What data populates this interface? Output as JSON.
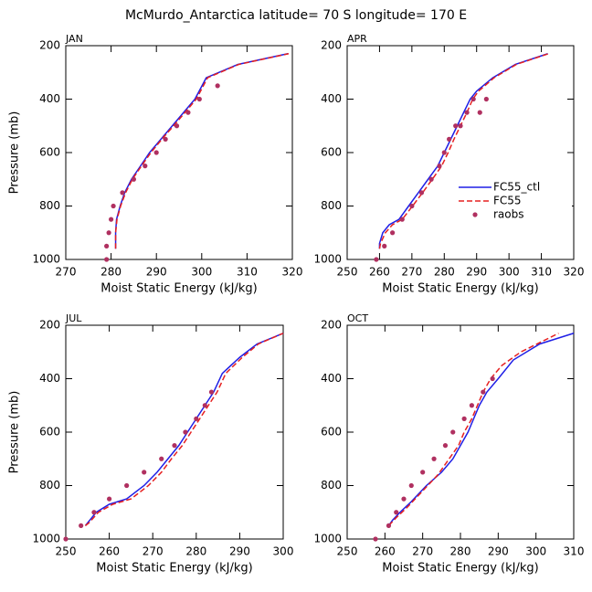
{
  "title": "McMurdo_Antarctica  latitude= 70 S longitude= 170 E",
  "chart_data": [
    {
      "type": "line",
      "title": "JAN",
      "xlabel": "Moist Static Energy (kJ/kg)",
      "ylabel": "Pressure (mb)",
      "xlim": [
        270,
        320
      ],
      "xticks": [
        270,
        280,
        290,
        300,
        310,
        320
      ],
      "ylim": [
        200,
        1000
      ],
      "yticks": [
        200,
        400,
        600,
        800,
        1000
      ],
      "y_inverted": true,
      "legend": false,
      "series": [
        {
          "name": "FC55_ctl",
          "color": "#1f1fe6",
          "style": "solid",
          "x": [
            281,
            281,
            281.2,
            282,
            283,
            284.5,
            286.5,
            288.5,
            291,
            293.5,
            296,
            298.5,
            301,
            308,
            319
          ],
          "y": [
            960,
            900,
            850,
            800,
            750,
            700,
            650,
            600,
            550,
            500,
            450,
            400,
            320,
            270,
            230
          ]
        },
        {
          "name": "FC55",
          "color": "#e62020",
          "style": "dashed",
          "x": [
            281,
            281,
            281.3,
            282.1,
            283.2,
            284.7,
            286.7,
            288.8,
            291.2,
            293.8,
            296.3,
            298.8,
            301.3,
            308.2,
            319.2
          ],
          "y": [
            960,
            900,
            850,
            800,
            750,
            700,
            650,
            600,
            550,
            500,
            450,
            400,
            320,
            270,
            230
          ]
        },
        {
          "name": "raobs",
          "color": "#b03060",
          "style": "markers",
          "x": [
            279,
            279,
            279.5,
            280,
            280.5,
            282.5,
            285,
            287.5,
            290,
            292,
            294.5,
            297,
            299.5,
            303.5
          ],
          "y": [
            1000,
            950,
            900,
            850,
            800,
            750,
            700,
            650,
            600,
            550,
            500,
            450,
            400,
            350
          ]
        }
      ]
    },
    {
      "type": "line",
      "title": "APR",
      "xlabel": "Moist Static Energy (kJ/kg)",
      "xlim": [
        250,
        320
      ],
      "xticks": [
        250,
        260,
        270,
        280,
        290,
        300,
        310,
        320
      ],
      "ylim": [
        200,
        1000
      ],
      "yticks": [
        200,
        400,
        600,
        800,
        1000
      ],
      "y_inverted": true,
      "legend": true,
      "legend_position": "center right",
      "series": [
        {
          "name": "FC55_ctl",
          "color": "#1f1fe6",
          "style": "solid",
          "x": [
            260,
            260,
            261,
            263,
            266,
            269,
            272,
            275,
            278,
            280,
            282,
            284,
            286,
            288,
            290,
            295,
            302,
            312
          ],
          "y": [
            960,
            940,
            900,
            870,
            850,
            800,
            750,
            700,
            650,
            600,
            550,
            500,
            450,
            400,
            370,
            320,
            270,
            230
          ]
        },
        {
          "name": "FC55",
          "color": "#e62020",
          "style": "dashed",
          "x": [
            260,
            260.3,
            261.8,
            264,
            267,
            270.2,
            273.3,
            276.3,
            279.2,
            281.2,
            283,
            285,
            287,
            288.8,
            290.6,
            295.4,
            302.3,
            312.2
          ],
          "y": [
            960,
            940,
            900,
            870,
            850,
            800,
            750,
            700,
            650,
            600,
            550,
            500,
            450,
            400,
            370,
            320,
            270,
            230
          ]
        },
        {
          "name": "raobs",
          "color": "#b03060",
          "style": "markers",
          "x": [
            259,
            261.5,
            264,
            267,
            270,
            273,
            276,
            278.5,
            280,
            281.5,
            283.5,
            285,
            287,
            289,
            291,
            293
          ],
          "y": [
            1000,
            950,
            900,
            850,
            800,
            750,
            700,
            650,
            600,
            550,
            500,
            500,
            450,
            400,
            450,
            400
          ]
        }
      ]
    },
    {
      "type": "line",
      "title": "JUL",
      "xlabel": "Moist Static Energy (kJ/kg)",
      "ylabel": "Pressure (mb)",
      "xlim": [
        250,
        300
      ],
      "xticks": [
        250,
        260,
        270,
        280,
        290,
        300
      ],
      "ylim": [
        200,
        1000
      ],
      "yticks": [
        200,
        400,
        600,
        800,
        1000
      ],
      "y_inverted": true,
      "legend": false,
      "series": [
        {
          "name": "FC55_ctl",
          "color": "#1f1fe6",
          "style": "solid",
          "x": [
            254.5,
            255,
            257,
            260,
            264,
            268,
            271,
            273.5,
            276,
            278,
            280,
            282,
            284,
            286,
            290,
            294,
            300
          ],
          "y": [
            950,
            940,
            900,
            870,
            850,
            800,
            750,
            700,
            650,
            600,
            550,
            500,
            450,
            380,
            320,
            270,
            230
          ]
        },
        {
          "name": "FC55",
          "color": "#e62020",
          "style": "dashed",
          "x": [
            254.5,
            255.3,
            257.5,
            260.8,
            265,
            269,
            272,
            274.3,
            276.8,
            278.8,
            280.8,
            282.8,
            284.8,
            286.8,
            290.6,
            294.3,
            300
          ],
          "y": [
            950,
            940,
            900,
            870,
            850,
            800,
            750,
            700,
            650,
            600,
            550,
            500,
            450,
            380,
            320,
            270,
            230
          ]
        },
        {
          "name": "raobs",
          "color": "#b03060",
          "style": "markers",
          "x": [
            250,
            253.5,
            256.5,
            260,
            264,
            268,
            272,
            275,
            277.5,
            280,
            282,
            283.5
          ],
          "y": [
            1000,
            950,
            900,
            850,
            800,
            750,
            700,
            650,
            600,
            550,
            500,
            450
          ]
        }
      ]
    },
    {
      "type": "line",
      "title": "OCT",
      "xlabel": "Moist Static Energy (kJ/kg)",
      "xlim": [
        250,
        310
      ],
      "xticks": [
        250,
        260,
        270,
        280,
        290,
        300,
        310
      ],
      "ylim": [
        200,
        1000
      ],
      "yticks": [
        200,
        400,
        600,
        800,
        1000
      ],
      "y_inverted": true,
      "legend": false,
      "series": [
        {
          "name": "FC55_ctl",
          "color": "#1f1fe6",
          "style": "solid",
          "x": [
            261,
            262,
            264,
            267,
            271,
            275,
            278,
            280,
            282,
            283.5,
            285,
            287,
            290,
            294,
            301,
            310
          ],
          "y": [
            950,
            930,
            900,
            860,
            800,
            750,
            700,
            650,
            600,
            550,
            500,
            450,
            400,
            330,
            270,
            230
          ]
        },
        {
          "name": "FC55",
          "color": "#e62020",
          "style": "dashed",
          "x": [
            261,
            263,
            266,
            270,
            274,
            277,
            279.5,
            281,
            283,
            284.5,
            286,
            288,
            291,
            296,
            306
          ],
          "y": [
            950,
            920,
            880,
            820,
            760,
            700,
            650,
            600,
            550,
            500,
            450,
            400,
            350,
            300,
            230
          ]
        },
        {
          "name": "raobs",
          "color": "#b03060",
          "style": "markers",
          "x": [
            257.5,
            261,
            263,
            265,
            267,
            270,
            273,
            276,
            278,
            281,
            283,
            286,
            288.5
          ],
          "y": [
            1000,
            950,
            900,
            850,
            800,
            750,
            700,
            650,
            600,
            550,
            500,
            450,
            400
          ]
        }
      ]
    }
  ]
}
